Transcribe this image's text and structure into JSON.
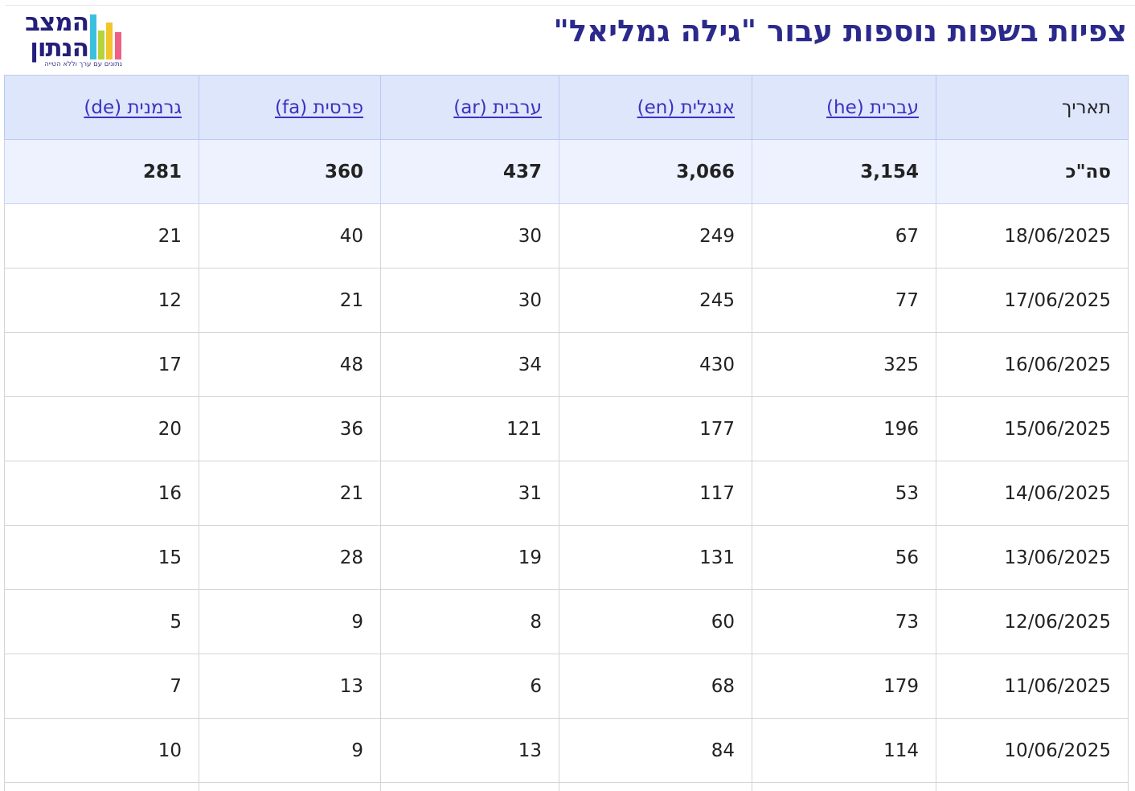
{
  "header": {
    "title": "צפיות בשפות נוספות עבור \"גילה גמליאל\"",
    "logo": {
      "line1": "המצב",
      "line2": "הנתון",
      "tagline": "נתונים עם ערך וללא הטייה",
      "bar_colors": [
        "#3cc0e0",
        "#b5d33a",
        "#f2c52b",
        "#ef5f86"
      ]
    }
  },
  "table": {
    "headers": {
      "date": "תאריך",
      "he": "עברית (he)",
      "en": "אנגלית (en)",
      "ar": "ערבית (ar)",
      "fa": "פרסית (fa)",
      "de": "גרמנית (de)"
    },
    "total": {
      "label": "סה\"כ",
      "he": "3,154",
      "en": "3,066",
      "ar": "437",
      "fa": "360",
      "de": "281"
    },
    "rows": [
      {
        "date": "18/06/2025",
        "he": "67",
        "en": "249",
        "ar": "30",
        "fa": "40",
        "de": "21"
      },
      {
        "date": "17/06/2025",
        "he": "77",
        "en": "245",
        "ar": "30",
        "fa": "21",
        "de": "12"
      },
      {
        "date": "16/06/2025",
        "he": "325",
        "en": "430",
        "ar": "34",
        "fa": "48",
        "de": "17"
      },
      {
        "date": "15/06/2025",
        "he": "196",
        "en": "177",
        "ar": "121",
        "fa": "36",
        "de": "20"
      },
      {
        "date": "14/06/2025",
        "he": "53",
        "en": "117",
        "ar": "31",
        "fa": "21",
        "de": "16"
      },
      {
        "date": "13/06/2025",
        "he": "56",
        "en": "131",
        "ar": "19",
        "fa": "28",
        "de": "15"
      },
      {
        "date": "12/06/2025",
        "he": "73",
        "en": "60",
        "ar": "8",
        "fa": "9",
        "de": "5"
      },
      {
        "date": "11/06/2025",
        "he": "179",
        "en": "68",
        "ar": "6",
        "fa": "13",
        "de": "7"
      },
      {
        "date": "10/06/2025",
        "he": "114",
        "en": "84",
        "ar": "13",
        "fa": "9",
        "de": "10"
      }
    ]
  }
}
